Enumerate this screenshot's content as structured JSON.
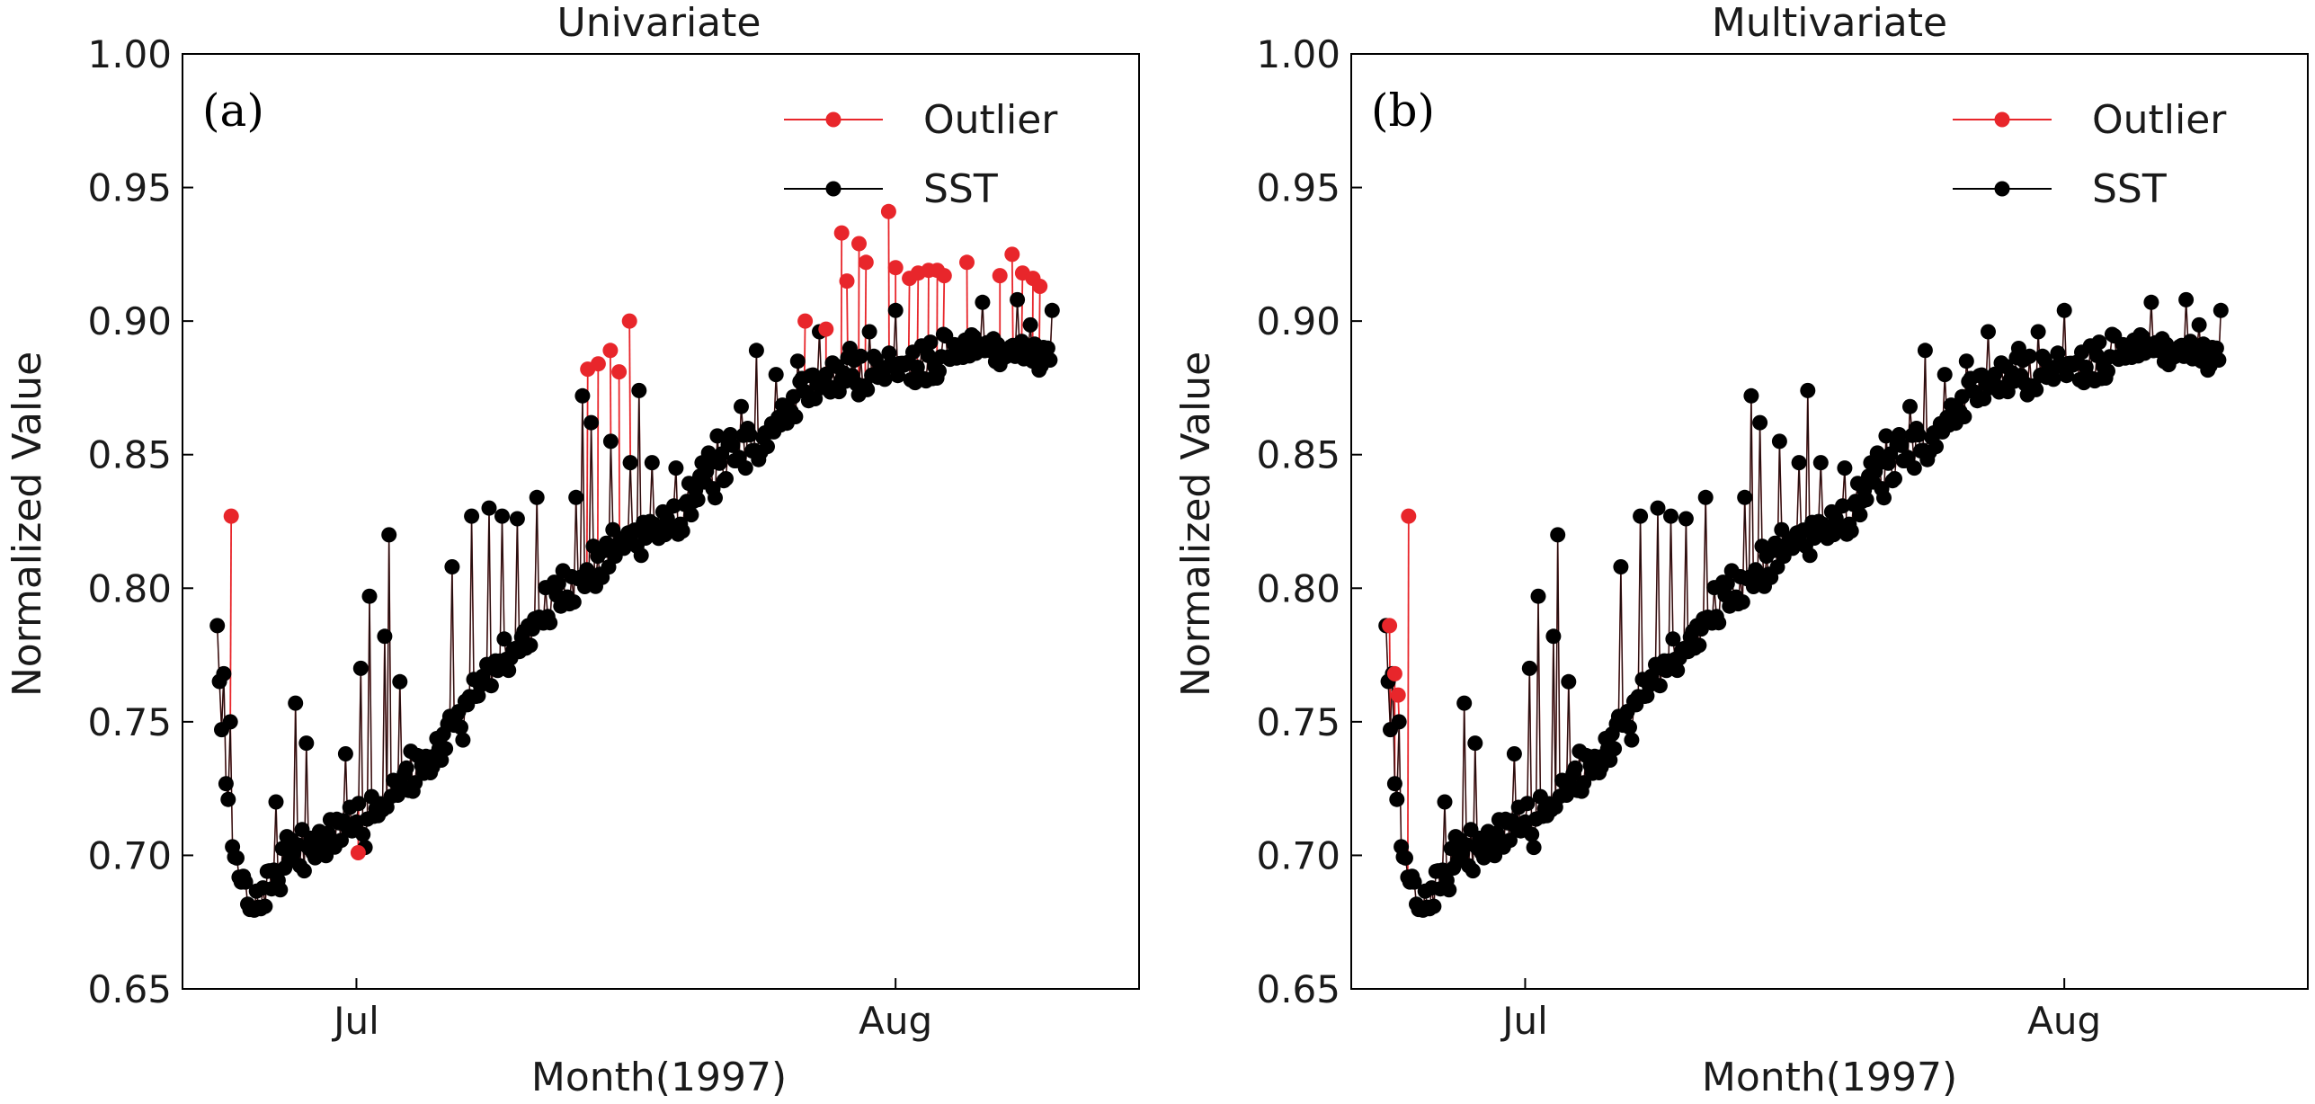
{
  "chart_data": [
    {
      "type": "line",
      "title": "Univariate",
      "panel_label": "(a)",
      "xlabel": "Month(1997)",
      "ylabel": "Normalized Value",
      "ylim": [
        0.65,
        1.0
      ],
      "yticks": [
        0.65,
        0.7,
        0.75,
        0.8,
        0.85,
        0.9,
        0.95,
        1.0
      ],
      "ytick_labels": [
        "0.65",
        "0.70",
        "0.75",
        "0.80",
        "0.85",
        "0.90",
        "0.95",
        "1.00"
      ],
      "xlim_days": [
        -10,
        45
      ],
      "xticks": [
        {
          "day": 0,
          "label": "Jul"
        },
        {
          "day": 31,
          "label": "Aug"
        }
      ],
      "legend_position": "top-right",
      "series": [
        {
          "name": "Outlier",
          "color": "#e8262b",
          "outliers": [
            [
              -7.2,
              0.827
            ],
            [
              0.1,
              0.701
            ],
            [
              13.3,
              0.882
            ],
            [
              13.9,
              0.884
            ],
            [
              14.6,
              0.889
            ],
            [
              15.1,
              0.881
            ],
            [
              15.7,
              0.9
            ],
            [
              25.8,
              0.9
            ],
            [
              27.0,
              0.897
            ],
            [
              27.9,
              0.933
            ],
            [
              28.2,
              0.915
            ],
            [
              28.9,
              0.929
            ],
            [
              29.3,
              0.922
            ],
            [
              30.6,
              0.941
            ],
            [
              31.0,
              0.92
            ],
            [
              31.8,
              0.916
            ],
            [
              32.3,
              0.918
            ],
            [
              32.9,
              0.919
            ],
            [
              33.4,
              0.919
            ],
            [
              33.8,
              0.917
            ],
            [
              35.1,
              0.922
            ],
            [
              37.0,
              0.917
            ],
            [
              37.7,
              0.925
            ],
            [
              38.3,
              0.918
            ],
            [
              38.9,
              0.916
            ],
            [
              39.3,
              0.913
            ]
          ]
        },
        {
          "name": "SST",
          "color": "#000000"
        }
      ]
    },
    {
      "type": "line",
      "title": "Multivariate",
      "panel_label": "(b)",
      "xlabel": "Month(1997)",
      "ylabel": "Normalized Value",
      "ylim": [
        0.65,
        1.0
      ],
      "yticks": [
        0.65,
        0.7,
        0.75,
        0.8,
        0.85,
        0.9,
        0.95,
        1.0
      ],
      "ytick_labels": [
        "0.65",
        "0.70",
        "0.75",
        "0.80",
        "0.85",
        "0.90",
        "0.95",
        "1.00"
      ],
      "xlim_days": [
        -10,
        45
      ],
      "xticks": [
        {
          "day": 0,
          "label": "Jul"
        },
        {
          "day": 31,
          "label": "Aug"
        }
      ],
      "legend_position": "top-right",
      "series": [
        {
          "name": "Outlier",
          "color": "#e8262b",
          "outliers": [
            [
              -7.8,
              0.786
            ],
            [
              -7.5,
              0.768
            ],
            [
              -7.3,
              0.76
            ],
            [
              -6.7,
              0.827
            ]
          ]
        },
        {
          "name": "SST",
          "color": "#000000"
        }
      ]
    }
  ],
  "sst_series": {
    "name": "SST",
    "x_start_day": -8.0,
    "step_days": 0.125,
    "anchors": [
      [
        -8.0,
        0.77
      ],
      [
        -7.2,
        0.7
      ],
      [
        -6.5,
        0.69
      ],
      [
        -5.8,
        0.68
      ],
      [
        -5.0,
        0.69
      ],
      [
        -4.0,
        0.7
      ],
      [
        -2.0,
        0.705
      ],
      [
        0.0,
        0.71
      ],
      [
        2.0,
        0.725
      ],
      [
        4.0,
        0.735
      ],
      [
        6.0,
        0.75
      ],
      [
        8.0,
        0.77
      ],
      [
        10.0,
        0.785
      ],
      [
        12.0,
        0.8
      ],
      [
        14.0,
        0.81
      ],
      [
        16.0,
        0.82
      ],
      [
        18.0,
        0.825
      ],
      [
        20.0,
        0.84
      ],
      [
        22.0,
        0.85
      ],
      [
        24.0,
        0.86
      ],
      [
        26.0,
        0.875
      ],
      [
        28.0,
        0.88
      ],
      [
        30.0,
        0.882
      ],
      [
        32.0,
        0.885
      ],
      [
        34.0,
        0.888
      ],
      [
        36.0,
        0.89
      ],
      [
        38.0,
        0.89
      ],
      [
        40.0,
        0.888
      ]
    ],
    "spikes": [
      [
        -8.0,
        0.786
      ],
      [
        -7.6,
        0.768
      ],
      [
        -7.3,
        0.75
      ],
      [
        -4.6,
        0.72
      ],
      [
        -3.5,
        0.757
      ],
      [
        -2.9,
        0.742
      ],
      [
        -0.6,
        0.738
      ],
      [
        0.2,
        0.77
      ],
      [
        0.8,
        0.797
      ],
      [
        1.6,
        0.782
      ],
      [
        1.9,
        0.82
      ],
      [
        2.5,
        0.765
      ],
      [
        5.5,
        0.808
      ],
      [
        6.6,
        0.827
      ],
      [
        7.6,
        0.83
      ],
      [
        8.4,
        0.827
      ],
      [
        9.3,
        0.826
      ],
      [
        10.4,
        0.834
      ],
      [
        12.6,
        0.834
      ],
      [
        13.0,
        0.872
      ],
      [
        13.5,
        0.862
      ],
      [
        14.6,
        0.855
      ],
      [
        15.7,
        0.847
      ],
      [
        16.3,
        0.874
      ],
      [
        17.0,
        0.847
      ],
      [
        18.4,
        0.845
      ],
      [
        20.7,
        0.857
      ],
      [
        22.1,
        0.868
      ],
      [
        23.0,
        0.889
      ],
      [
        24.1,
        0.88
      ],
      [
        25.4,
        0.885
      ],
      [
        26.6,
        0.896
      ],
      [
        29.5,
        0.896
      ],
      [
        31.0,
        0.904
      ],
      [
        33.7,
        0.895
      ],
      [
        36.0,
        0.907
      ],
      [
        38.0,
        0.908
      ],
      [
        40.0,
        0.904
      ]
    ],
    "noise_amp": 0.008,
    "seed": 7
  },
  "legend": {
    "outlier_label": "Outlier",
    "sst_label": "SST"
  }
}
